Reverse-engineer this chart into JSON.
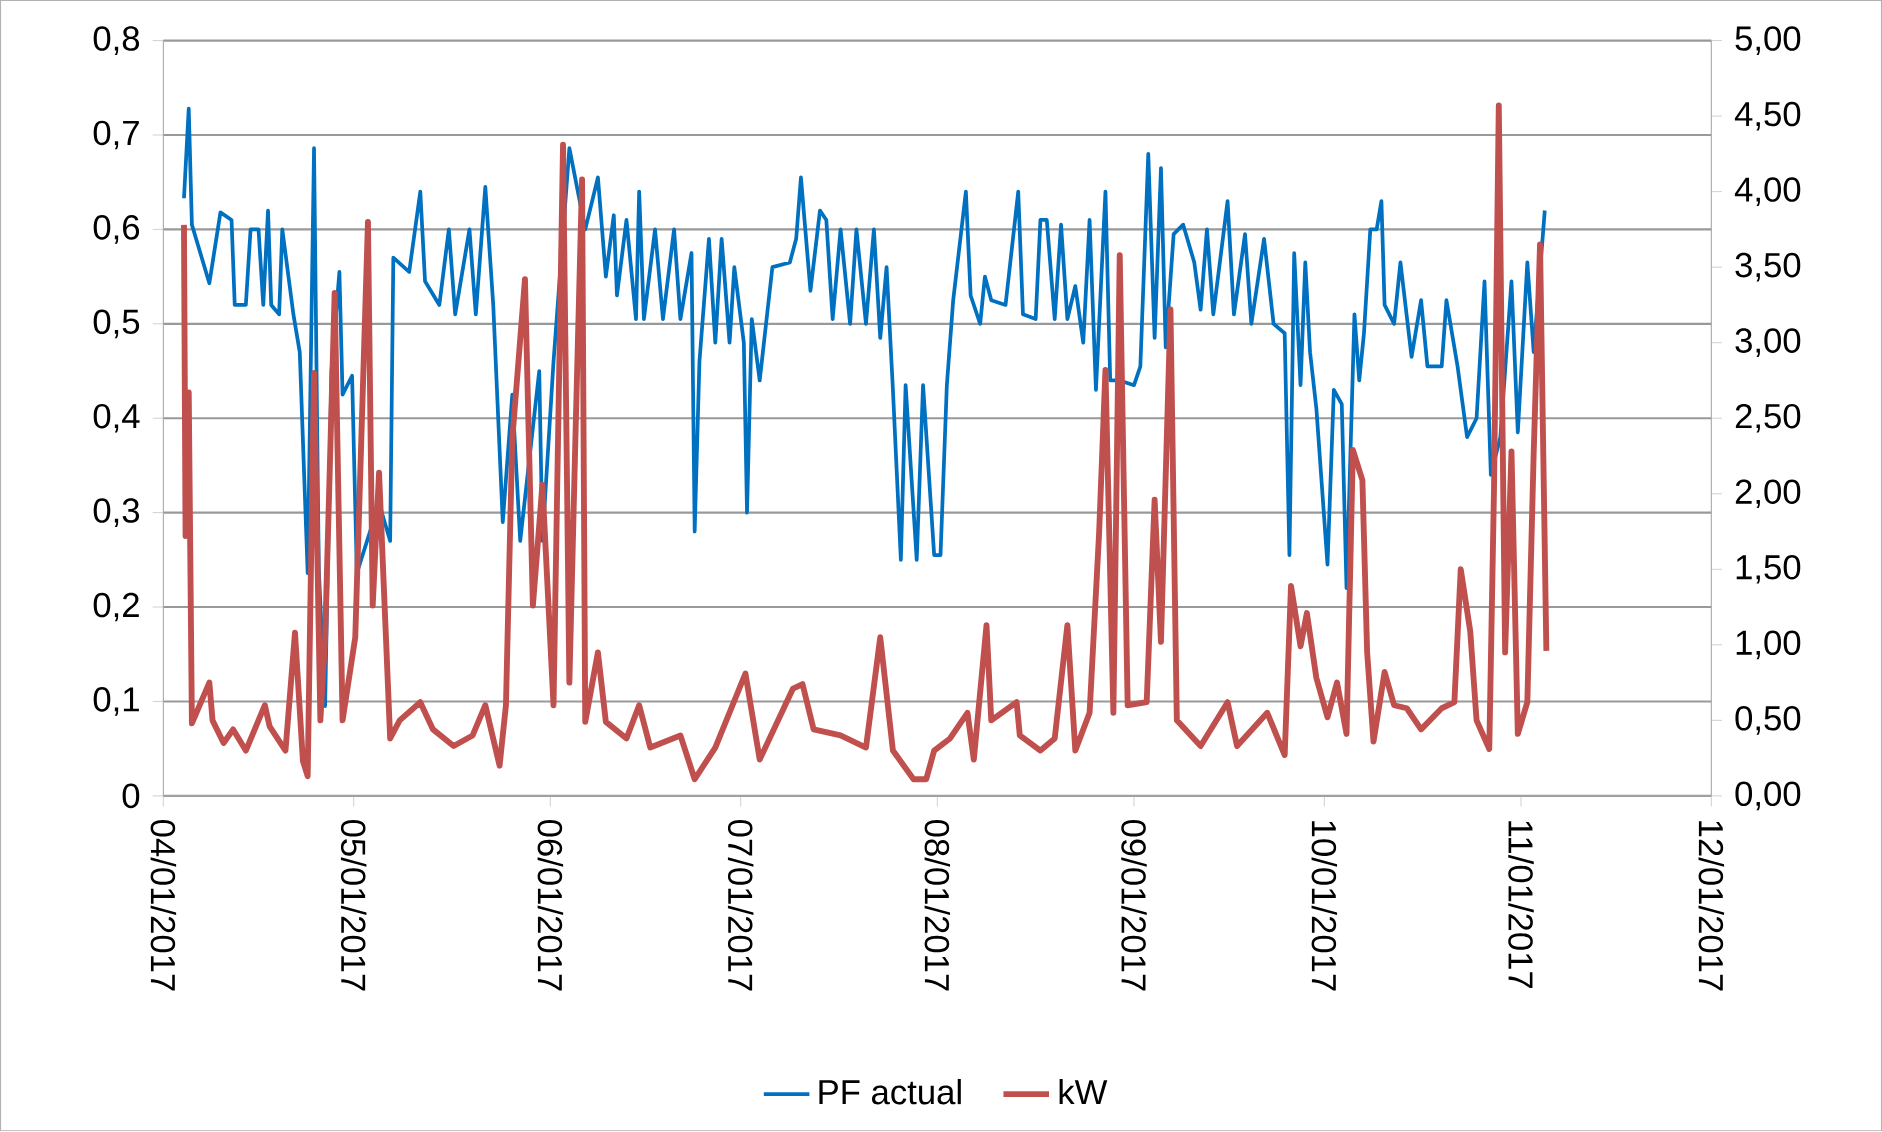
{
  "chart_data": {
    "type": "line",
    "legend": "bottom",
    "grid": "y",
    "marker": "none",
    "line_style": "solid",
    "xlim": [
      "2017-04-01",
      "2017-12-01"
    ],
    "xticks": [
      {
        "value": "2017-04-01",
        "label": "04/01/2017"
      },
      {
        "value": "2017-05-01",
        "label": "05/01/2017"
      },
      {
        "value": "2017-06-01",
        "label": "06/01/2017"
      },
      {
        "value": "2017-07-01",
        "label": "07/01/2017"
      },
      {
        "value": "2017-08-01",
        "label": "08/01/2017"
      },
      {
        "value": "2017-09-01",
        "label": "09/01/2017"
      },
      {
        "value": "2017-10-01",
        "label": "10/01/2017"
      },
      {
        "value": "2017-11-01",
        "label": "11/01/2017"
      },
      {
        "value": "2017-12-01",
        "label": "12/01/2017"
      }
    ],
    "ylim": [
      0,
      0.8
    ],
    "yticks": [
      0,
      {
        "value": 0.1,
        "label": "0,1"
      },
      {
        "value": 0.2,
        "label": "0,2"
      },
      {
        "value": 0.3,
        "label": "0,3"
      },
      {
        "value": 0.4,
        "label": "0,4"
      },
      {
        "value": 0.5,
        "label": "0,5"
      },
      {
        "value": 0.6,
        "label": "0,6"
      },
      {
        "value": 0.7,
        "label": "0,7"
      },
      {
        "value": 0.8,
        "label": "0,8"
      }
    ],
    "y2lim": [
      0,
      5
    ],
    "y2ticks": [
      {
        "value": 0,
        "label": "0,00"
      },
      {
        "value": 0.5,
        "label": "0,50"
      },
      {
        "value": 1,
        "label": "1,00"
      },
      {
        "value": 1.5,
        "label": "1,50"
      },
      {
        "value": 2,
        "label": "2,00"
      },
      {
        "value": 2.5,
        "label": "2,50"
      },
      {
        "value": 3,
        "label": "3,00"
      },
      {
        "value": 3.5,
        "label": "3,50"
      },
      {
        "value": 4,
        "label": "4,00"
      },
      {
        "value": 4.5,
        "label": "4,50"
      },
      {
        "value": 5,
        "label": "5,00"
      }
    ],
    "series": [
      {
        "name": "PF actual",
        "color": "#0070c0",
        "x": [
          "2017-04-04T06:00",
          "2017-04-05",
          "2017-04-05T12:00",
          "2017-04-08T06:00",
          "2017-04-10",
          "2017-04-11T18:00",
          "2017-04-12T06:00",
          "2017-04-14",
          "2017-04-14T18:00",
          "2017-04-16",
          "2017-04-16T18:00",
          "2017-04-17T12:00",
          "2017-04-18",
          "2017-04-19T06:00",
          "2017-04-19T18:00",
          "2017-04-21T12:00",
          "2017-04-22T12:00",
          "2017-04-23T18:00",
          "2017-04-24T18:00",
          "2017-04-25T12:00",
          "2017-04-26T12:00",
          "2017-04-27T12:00",
          "2017-04-28T18:00",
          "2017-04-29T06:00",
          "2017-04-30T18:00",
          "2017-05-01T12:00",
          "2017-05-05",
          "2017-05-06T18:00",
          "2017-05-07T06:00",
          "2017-05-09T18:00",
          "2017-05-11T12:00",
          "2017-05-12T06:00",
          "2017-05-14T12:00",
          "2017-05-16",
          "2017-05-17",
          "2017-05-19T06:00",
          "2017-05-20T06:00",
          "2017-05-21T18:00",
          "2017-05-23",
          "2017-05-24T12:00",
          "2017-05-26",
          "2017-05-27T06:00",
          "2017-05-30T06:00",
          "2017-05-30T18:00",
          "2017-06-01T12:00",
          "2017-06-04",
          "2017-06-06T12:00",
          "2017-06-08T12:00",
          "2017-06-09T18:00",
          "2017-06-11",
          "2017-06-11T12:00",
          "2017-06-13",
          "2017-06-14T12:00",
          "2017-06-15",
          "2017-06-15T18:00",
          "2017-06-17T12:00",
          "2017-06-18T18:00",
          "2017-06-20T12:00",
          "2017-06-21T12:00",
          "2017-06-23T06:00",
          "2017-06-23T18:00",
          "2017-06-24T12:00",
          "2017-06-26",
          "2017-06-27",
          "2017-06-28",
          "2017-06-29T06:00",
          "2017-06-30",
          "2017-07-01T12:00",
          "2017-07-02",
          "2017-07-02T18:00",
          "2017-07-04",
          "2017-07-06",
          "2017-07-08T18:00",
          "2017-07-09T18:00",
          "2017-07-10T12:00",
          "2017-07-12",
          "2017-07-13T12:00",
          "2017-07-14T12:00",
          "2017-07-15T12:00",
          "2017-07-16T18:00",
          "2017-07-18T06:00",
          "2017-07-19T06:00",
          "2017-07-20T18:00",
          "2017-07-22",
          "2017-07-23",
          "2017-07-24",
          "2017-07-25",
          "2017-07-26T06:00",
          "2017-07-27",
          "2017-07-28T18:00",
          "2017-07-29T18:00",
          "2017-07-31T12:00",
          "2017-08-01T12:00",
          "2017-08-02T12:00",
          "2017-08-03T12:00",
          "2017-08-05T12:00",
          "2017-08-06T06:00",
          "2017-08-07T18:00",
          "2017-08-08T12:00",
          "2017-08-09T12:00",
          "2017-08-11T18:00",
          "2017-08-13T18:00",
          "2017-08-14T12:00",
          "2017-08-16T12:00",
          "2017-08-17T06:00",
          "2017-08-18T06:00",
          "2017-08-19T12:00",
          "2017-08-20T12:00",
          "2017-08-21T12:00",
          "2017-08-22T18:00",
          "2017-08-24",
          "2017-08-25",
          "2017-08-26",
          "2017-08-27T12:00",
          "2017-08-28T06:00",
          "2017-08-29T18:00",
          "2017-09-01",
          "2017-09-02",
          "2017-09-03T06:00",
          "2017-09-04T06:00",
          "2017-09-05T06:00",
          "2017-09-06",
          "2017-09-07T06:00",
          "2017-09-08T18:00",
          "2017-09-10T12:00",
          "2017-09-11T12:00",
          "2017-09-12T12:00",
          "2017-09-13T12:00",
          "2017-09-15T18:00",
          "2017-09-16T18:00",
          "2017-09-18T12:00",
          "2017-09-19T12:00",
          "2017-09-21T12:00",
          "2017-09-23",
          "2017-09-24T18:00",
          "2017-09-25T12:00",
          "2017-09-26T06:00",
          "2017-09-27T06:00",
          "2017-09-28",
          "2017-09-28T18:00",
          "2017-09-29T18:00",
          "2017-10-01T12:00",
          "2017-10-02T12:00",
          "2017-10-03T18:00",
          "2017-10-04T12:00",
          "2017-10-05T18:00",
          "2017-10-06T12:00",
          "2017-10-07T06:00",
          "2017-10-08T06:00",
          "2017-10-09T06:00",
          "2017-10-10",
          "2017-10-10T12:00",
          "2017-10-12",
          "2017-10-13",
          "2017-10-14T18:00",
          "2017-10-16T06:00",
          "2017-10-17T06:00",
          "2017-10-19T12:00",
          "2017-10-20T06:00",
          "2017-10-22",
          "2017-10-23T12:00",
          "2017-10-25",
          "2017-10-26T06:00",
          "2017-10-27T06:00",
          "2017-10-28T18:00",
          "2017-10-30T12:00",
          "2017-10-31T12:00",
          "2017-11-02",
          "2017-11-03",
          "2017-11-04T18:00"
        ],
        "values": [
          0.633,
          0.728,
          0.605,
          0.543,
          0.618,
          0.61,
          0.52,
          0.52,
          0.6,
          0.6,
          0.52,
          0.62,
          0.52,
          0.51,
          0.6,
          0.51,
          0.47,
          0.236,
          0.686,
          0.24,
          0.095,
          0.45,
          0.555,
          0.425,
          0.445,
          0.236,
          0.31,
          0.27,
          0.57,
          0.555,
          0.64,
          0.545,
          0.52,
          0.6,
          0.51,
          0.6,
          0.51,
          0.645,
          0.52,
          0.29,
          0.425,
          0.27,
          0.45,
          0.27,
          0.46,
          0.686,
          0.6,
          0.655,
          0.55,
          0.615,
          0.53,
          0.61,
          0.505,
          0.64,
          0.505,
          0.6,
          0.505,
          0.6,
          0.505,
          0.575,
          0.28,
          0.46,
          0.59,
          0.48,
          0.59,
          0.48,
          0.56,
          0.48,
          0.3,
          0.505,
          0.44,
          0.56,
          0.565,
          0.59,
          0.655,
          0.535,
          0.62,
          0.61,
          0.505,
          0.6,
          0.5,
          0.6,
          0.5,
          0.6,
          0.485,
          0.56,
          0.43,
          0.25,
          0.435,
          0.25,
          0.435,
          0.255,
          0.255,
          0.435,
          0.525,
          0.64,
          0.53,
          0.5,
          0.55,
          0.525,
          0.52,
          0.64,
          0.51,
          0.505,
          0.61,
          0.61,
          0.505,
          0.605,
          0.505,
          0.54,
          0.48,
          0.61,
          0.43,
          0.64,
          0.44,
          0.44,
          0.435,
          0.455,
          0.68,
          0.485,
          0.665,
          0.475,
          0.595,
          0.605,
          0.565,
          0.515,
          0.6,
          0.51,
          0.63,
          0.51,
          0.595,
          0.5,
          0.59,
          0.5,
          0.49,
          0.255,
          0.575,
          0.435,
          0.565,
          0.47,
          0.41,
          0.245,
          0.43,
          0.415,
          0.22,
          0.51,
          0.44,
          0.49,
          0.6,
          0.6,
          0.63,
          0.52,
          0.5,
          0.565,
          0.465,
          0.525,
          0.455,
          0.455,
          0.525,
          0.455,
          0.38,
          0.4,
          0.545,
          0.34,
          0.38,
          0.545,
          0.385,
          0.565,
          0.47,
          0.62
        ]
      },
      {
        "name": "kW",
        "color": "#c0504d",
        "axis": "y2",
        "x": [
          "2017-04-04T06:00",
          "2017-04-04T12:00",
          "2017-04-05",
          "2017-04-05T12:00",
          "2017-04-08T06:00",
          "2017-04-08T18:00",
          "2017-04-10T12:00",
          "2017-04-12",
          "2017-04-14",
          "2017-04-17",
          "2017-04-17T18:00",
          "2017-04-20T06:00",
          "2017-04-21T18:00",
          "2017-04-23",
          "2017-04-23T18:00",
          "2017-04-24T18:00",
          "2017-04-25T18:00",
          "2017-04-26T12:00",
          "2017-04-28",
          "2017-04-29T06:00",
          "2017-05-01T06:00",
          "2017-05-03T06:00",
          "2017-05-04",
          "2017-05-05",
          "2017-05-06T18:00",
          "2017-05-08T06:00",
          "2017-05-11T12:00",
          "2017-05-13T12:00",
          "2017-05-16T18:00",
          "2017-05-19T18:00",
          "2017-05-21T18:00",
          "2017-05-24",
          "2017-05-25",
          "2017-05-26",
          "2017-05-28",
          "2017-05-29T06:00",
          "2017-05-30T18:00",
          "2017-06-01T12:00",
          "2017-06-03",
          "2017-06-04",
          "2017-06-05",
          "2017-06-06",
          "2017-06-06T12:00",
          "2017-06-08T12:00",
          "2017-06-09T18:00",
          "2017-06-13",
          "2017-06-15",
          "2017-06-16T18:00",
          "2017-06-21T12:00",
          "2017-06-23T18:00",
          "2017-06-27",
          "2017-07-01T18:00",
          "2017-07-04",
          "2017-07-09T06:00",
          "2017-07-10T18:00",
          "2017-07-12T12:00",
          "2017-07-16T18:00",
          "2017-07-20T18:00",
          "2017-07-23",
          "2017-07-25",
          "2017-07-28T06:00",
          "2017-07-30T06:00",
          "2017-07-31T12:00",
          "2017-08-03",
          "2017-08-05T18:00",
          "2017-08-06T18:00",
          "2017-08-08T18:00",
          "2017-08-09T12:00",
          "2017-08-13T12:00",
          "2017-08-14",
          "2017-08-17T06:00",
          "2017-08-19T12:00",
          "2017-08-21T12:00",
          "2017-08-22T18:00",
          "2017-08-25",
          "2017-08-26T12:00",
          "2017-08-27T12:00",
          "2017-08-28T18:00",
          "2017-08-29T18:00",
          "2017-08-31",
          "2017-09-03",
          "2017-09-04T06:00",
          "2017-09-05T06:00",
          "2017-09-06T18:00",
          "2017-09-07T18:00",
          "2017-09-11T12:00",
          "2017-09-15T18:00",
          "2017-09-17T06:00",
          "2017-09-22",
          "2017-09-24T18:00",
          "2017-09-25T18:00",
          "2017-09-27T06:00",
          "2017-09-28T06:00",
          "2017-09-29T18:00",
          "2017-10-01T12:00",
          "2017-10-03",
          "2017-10-04T12:00",
          "2017-10-05T12:00",
          "2017-10-07",
          "2017-10-07T18:00",
          "2017-10-08T18:00",
          "2017-10-10T12:00",
          "2017-10-12",
          "2017-10-14",
          "2017-10-16T06:00",
          "2017-10-19T12:00",
          "2017-10-21T12:00",
          "2017-10-22T12:00",
          "2017-10-24",
          "2017-10-25",
          "2017-10-27",
          "2017-10-27T18:00",
          "2017-10-28T12:00",
          "2017-10-29T12:00",
          "2017-10-30T12:00",
          "2017-10-31T12:00",
          "2017-11-02",
          "2017-11-03",
          "2017-11-04",
          "2017-11-05"
        ],
        "values": [
          3.78,
          1.72,
          2.67,
          0.48,
          0.75,
          0.5,
          0.35,
          0.44,
          0.3,
          0.6,
          0.46,
          0.3,
          1.08,
          0.23,
          0.13,
          2.8,
          0.5,
          1.05,
          3.33,
          0.5,
          1.05,
          3.8,
          1.26,
          2.14,
          0.38,
          0.5,
          0.62,
          0.44,
          0.33,
          0.4,
          0.6,
          0.2,
          0.6,
          2.36,
          3.42,
          1.26,
          2.06,
          0.6,
          4.31,
          0.75,
          2.45,
          4.08,
          0.49,
          0.95,
          0.49,
          0.38,
          0.6,
          0.32,
          0.4,
          0.11,
          0.32,
          0.81,
          0.24,
          0.71,
          0.74,
          0.44,
          0.4,
          0.32,
          1.05,
          0.3,
          0.11,
          0.11,
          0.3,
          0.38,
          0.55,
          0.24,
          1.13,
          0.5,
          0.62,
          0.4,
          0.3,
          0.38,
          1.13,
          0.3,
          0.55,
          1.74,
          2.82,
          0.55,
          3.58,
          0.6,
          0.62,
          1.96,
          1.02,
          3.22,
          0.5,
          0.33,
          0.62,
          0.33,
          0.55,
          0.27,
          1.39,
          0.99,
          1.21,
          0.78,
          0.52,
          0.75,
          0.41,
          2.29,
          2.09,
          0.95,
          0.36,
          0.82,
          0.6,
          0.58,
          0.44,
          0.58,
          0.62,
          1.5,
          1.09,
          0.5,
          0.31,
          2.04,
          4.57,
          0.95,
          2.28,
          0.41,
          0.62,
          2.27,
          3.65,
          0.96
        ]
      }
    ]
  }
}
